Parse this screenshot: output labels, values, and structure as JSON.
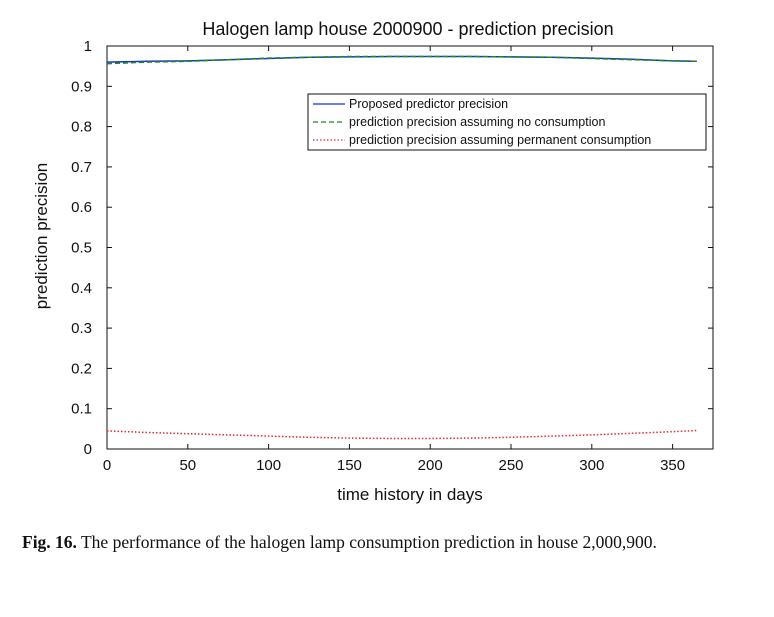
{
  "chart_data": {
    "type": "line",
    "title": "Halogen lamp house 2000900 - prediction precision",
    "xlabel": "time history in days",
    "ylabel": "prediction precision",
    "xlim": [
      0,
      375
    ],
    "ylim": [
      0,
      1
    ],
    "xticks": [
      0,
      50,
      100,
      150,
      200,
      250,
      300,
      350
    ],
    "yticks": [
      0,
      0.1,
      0.2,
      0.3,
      0.4,
      0.5,
      0.6,
      0.7,
      0.8,
      0.9,
      1
    ],
    "ytick_labels": [
      "0",
      "0.1",
      "0.2",
      "0.3",
      "0.4",
      "0.5",
      "0.6",
      "0.7",
      "0.8",
      "0.9",
      "1"
    ],
    "grid": false,
    "legend_position": "top-right",
    "series": [
      {
        "name": "Proposed predictor precision",
        "color": "#1f2fd6",
        "style": "solid",
        "x": [
          0,
          25,
          50,
          75,
          100,
          125,
          150,
          175,
          200,
          225,
          250,
          275,
          300,
          325,
          350,
          365
        ],
        "y": [
          0.96,
          0.962,
          0.963,
          0.966,
          0.969,
          0.972,
          0.973,
          0.974,
          0.974,
          0.974,
          0.973,
          0.972,
          0.97,
          0.967,
          0.963,
          0.962
        ]
      },
      {
        "name": "prediction precision assuming no consumption",
        "color": "#1a8a1a",
        "style": "dashed",
        "x": [
          0,
          25,
          50,
          75,
          100,
          125,
          150,
          175,
          200,
          225,
          250,
          275,
          300,
          325,
          350,
          365
        ],
        "y": [
          0.956,
          0.96,
          0.962,
          0.966,
          0.97,
          0.972,
          0.974,
          0.974,
          0.974,
          0.974,
          0.973,
          0.972,
          0.969,
          0.966,
          0.963,
          0.962
        ]
      },
      {
        "name": "prediction precision assuming permanent consumption",
        "color": "#e8262c",
        "style": "dotted",
        "x": [
          0,
          25,
          50,
          75,
          100,
          125,
          150,
          175,
          200,
          225,
          250,
          275,
          300,
          325,
          350,
          365
        ],
        "y": [
          0.045,
          0.041,
          0.038,
          0.035,
          0.032,
          0.029,
          0.027,
          0.026,
          0.026,
          0.027,
          0.029,
          0.032,
          0.035,
          0.039,
          0.043,
          0.046
        ]
      }
    ]
  },
  "caption": {
    "label": "Fig. 16.",
    "text": " The performance of the halogen lamp consumption prediction in house 2,000,900."
  }
}
